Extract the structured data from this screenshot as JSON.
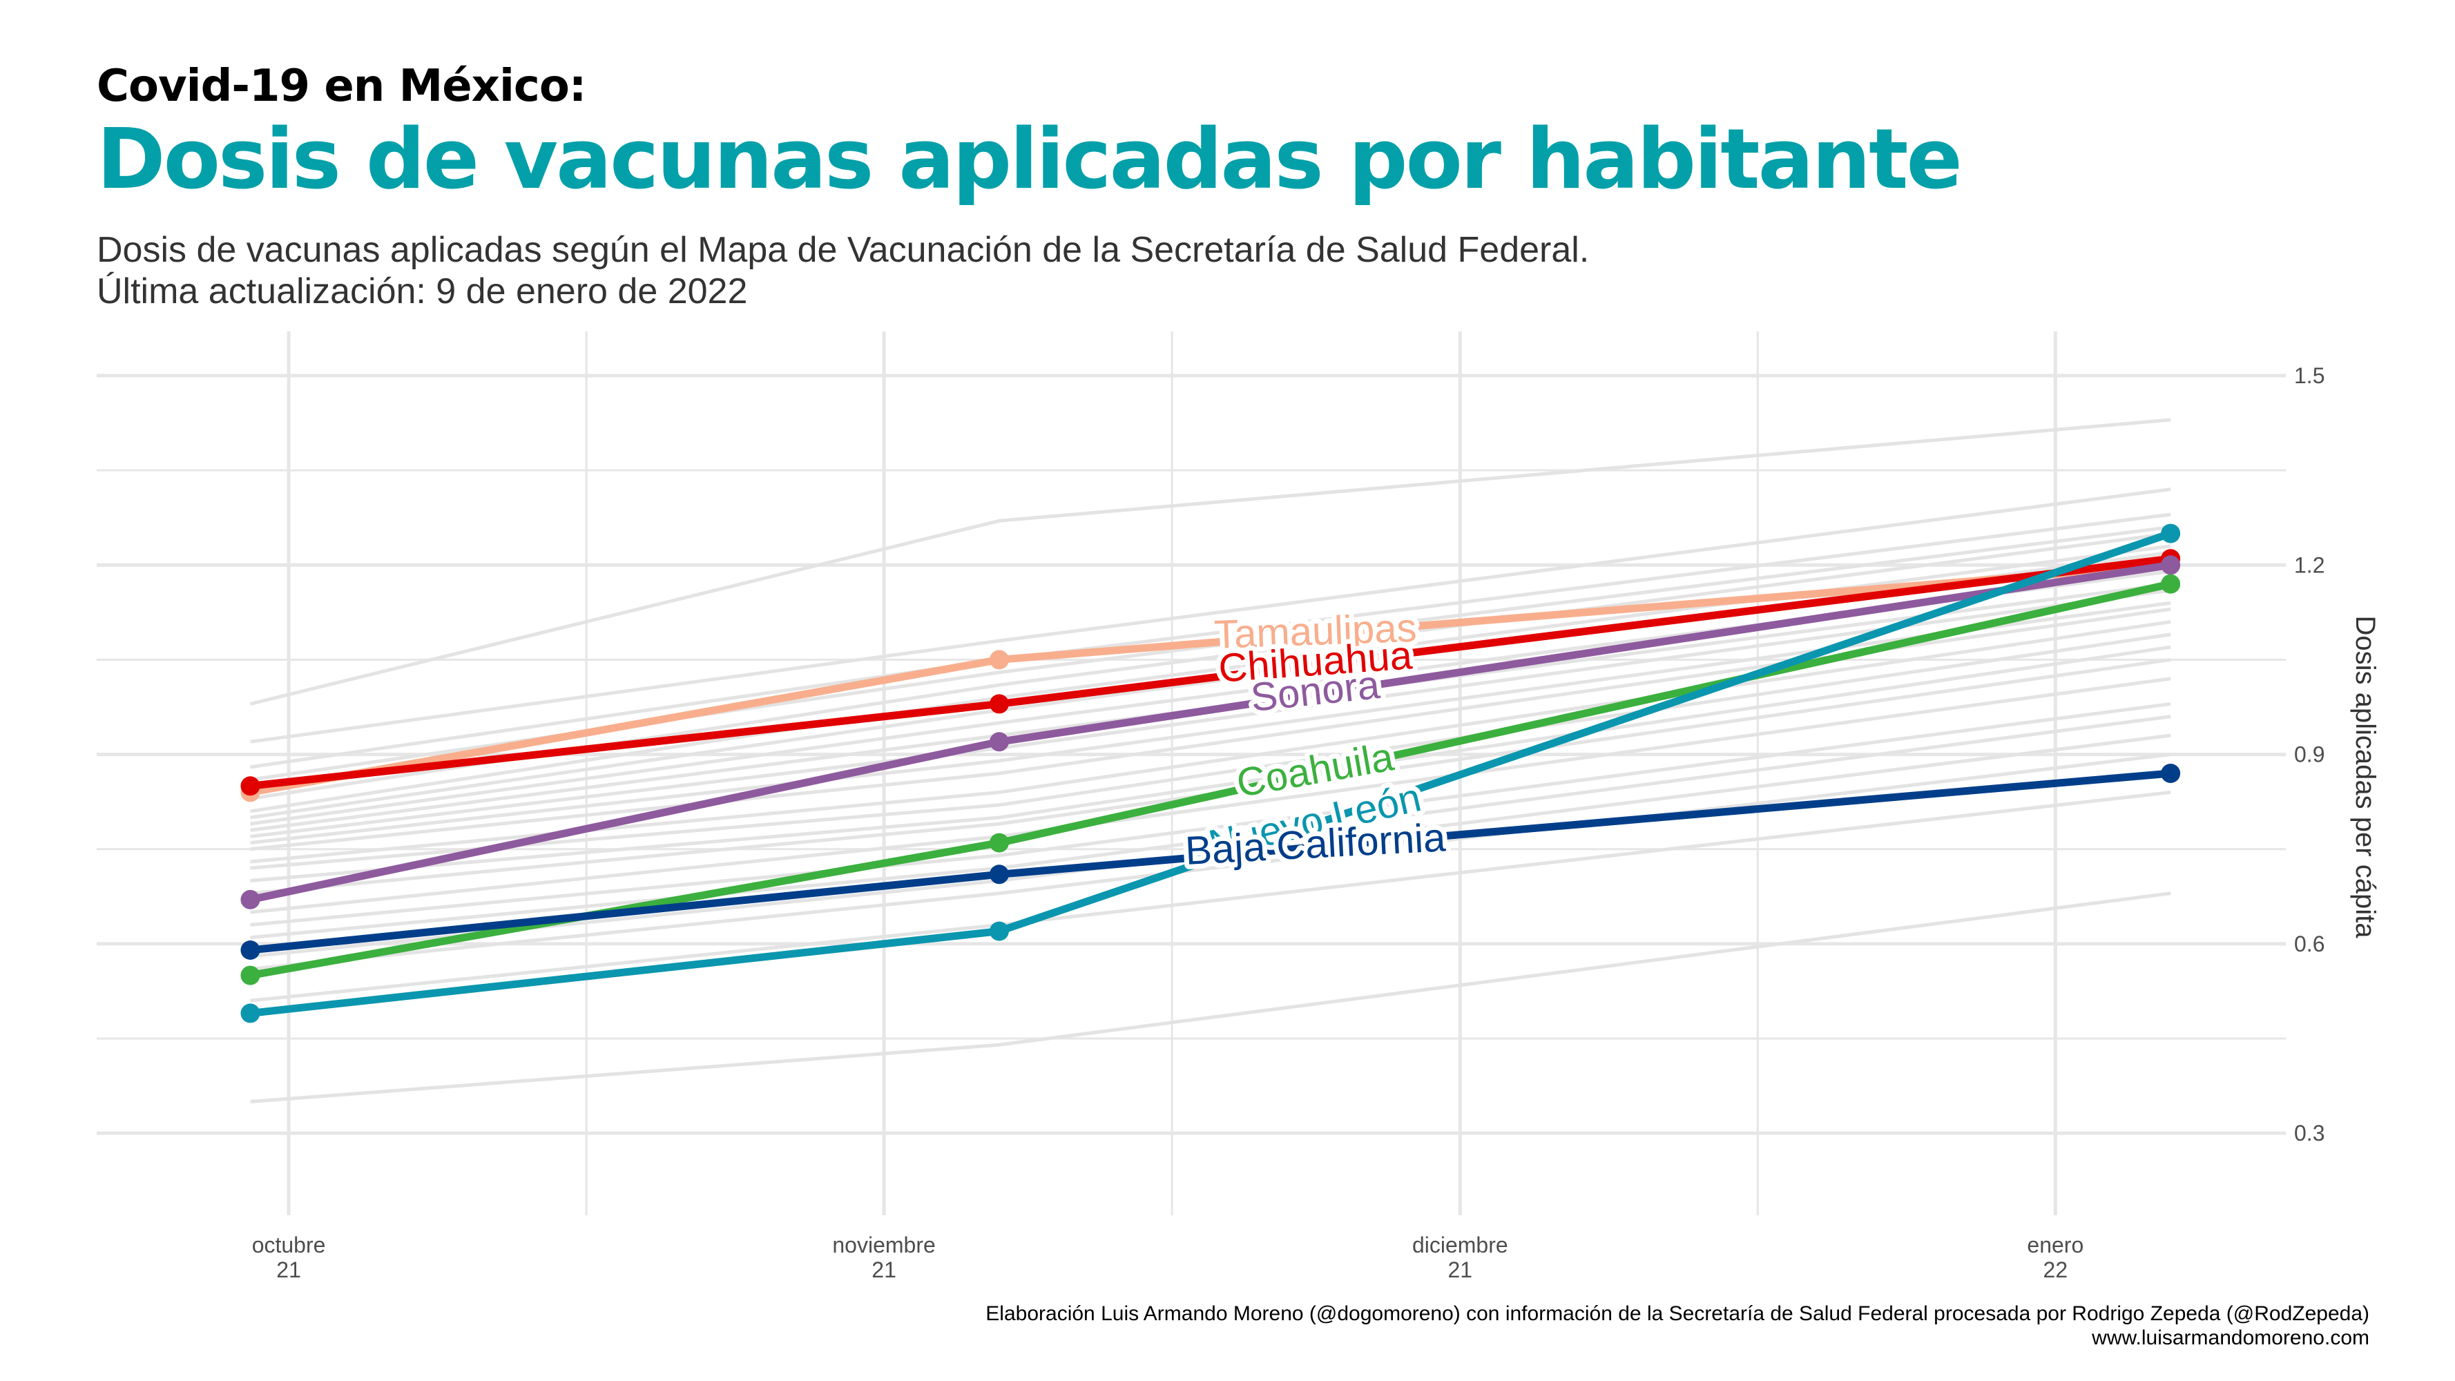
{
  "header": {
    "kicker": "Covid-19 en México:",
    "title": "Dosis de vacunas aplicadas por habitante",
    "subtitle_line1": "Dosis de vacunas aplicadas según el Mapa de Vacunación de la Secretaría de Salud Federal.",
    "subtitle_line2": "Última actualización: 9 de enero de 2022"
  },
  "footer": {
    "credit": "Elaboración Luis Armando Moreno (@dogomoreno) con información de la Secretaría de Salud Federal procesada por Rodrigo Zepeda (@RodZepeda)",
    "website": "www.luisarmandomoreno.com"
  },
  "chart_data": {
    "type": "line",
    "x": [
      "2021-09-29",
      "2021-11-07",
      "2022-01-07"
    ],
    "ylabel": "Dosis aplicadas per cápita",
    "ylim": [
      0.17,
      1.57
    ],
    "y_ticks": [
      0.3,
      0.6,
      0.9,
      1.2,
      1.5
    ],
    "x_ticks": [
      {
        "date": "2021-10-01",
        "label": [
          "octubre",
          "21"
        ]
      },
      {
        "date": "2021-11-01",
        "label": [
          "noviembre",
          "21"
        ]
      },
      {
        "date": "2021-12-01",
        "label": [
          "diciembre",
          "21"
        ]
      },
      {
        "date": "2022-01-01",
        "label": [
          "enero",
          "22"
        ]
      }
    ],
    "x_range": [
      "2021-09-21",
      "2022-01-13"
    ],
    "grid": true,
    "background_series": [
      [
        0.98,
        1.27,
        1.43
      ],
      [
        0.92,
        1.08,
        1.32
      ],
      [
        0.88,
        1.05,
        1.28
      ],
      [
        0.86,
        1.03,
        1.26
      ],
      [
        0.83,
        1.01,
        1.25
      ],
      [
        0.81,
        0.99,
        1.23
      ],
      [
        0.8,
        0.97,
        1.22
      ],
      [
        0.79,
        0.95,
        1.19
      ],
      [
        0.78,
        0.93,
        1.17
      ],
      [
        0.77,
        0.91,
        1.16
      ],
      [
        0.76,
        0.89,
        1.14
      ],
      [
        0.75,
        0.87,
        1.13
      ],
      [
        0.73,
        0.84,
        1.11
      ],
      [
        0.72,
        0.82,
        1.09
      ],
      [
        0.7,
        0.8,
        1.07
      ],
      [
        0.68,
        0.79,
        1.05
      ],
      [
        0.65,
        0.77,
        1.02
      ],
      [
        0.63,
        0.74,
        0.98
      ],
      [
        0.61,
        0.72,
        0.96
      ],
      [
        0.58,
        0.7,
        0.93
      ],
      [
        0.56,
        0.68,
        0.9
      ],
      [
        0.51,
        0.63,
        0.84
      ],
      [
        0.35,
        0.44,
        0.68
      ]
    ],
    "series": [
      {
        "name": "Tamaulipas",
        "values": [
          0.84,
          1.05,
          1.2
        ],
        "color": "#f8ae8d",
        "label_rotation": -2
      },
      {
        "name": "Chihuahua",
        "values": [
          0.85,
          0.98,
          1.21
        ],
        "color": "#e10000",
        "label_rotation": -4
      },
      {
        "name": "Sonora",
        "values": [
          0.67,
          0.92,
          1.2
        ],
        "color": "#8e5a9e",
        "label_rotation": -6
      },
      {
        "name": "Coahuila",
        "values": [
          0.55,
          0.76,
          1.17
        ],
        "color": "#3bb03e",
        "label_rotation": -10
      },
      {
        "name": "Nuevo León",
        "values": [
          0.49,
          0.62,
          1.25
        ],
        "color": "#0a96ae",
        "label_rotation": -13
      },
      {
        "name": "Baja California",
        "values": [
          0.59,
          0.71,
          0.87
        ],
        "color": "#003e8a",
        "label_rotation": -3
      }
    ],
    "colors": {
      "grid": "#e6e6e6",
      "background_line": "#e3e3e3",
      "axis_text": "#4d4d4d"
    }
  }
}
